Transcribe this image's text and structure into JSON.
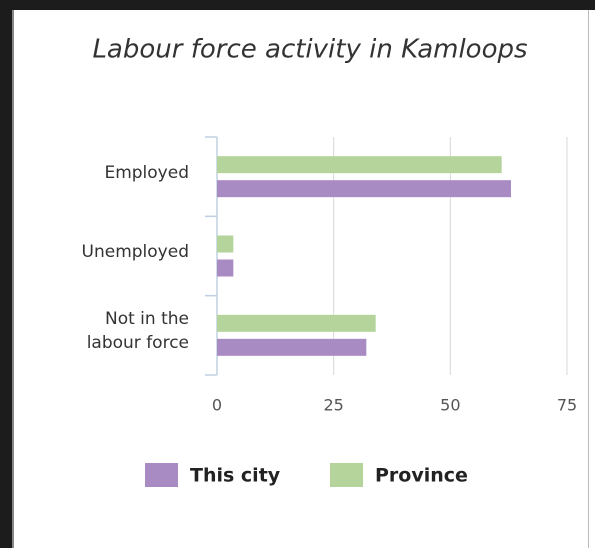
{
  "chart_data": {
    "type": "bar",
    "orientation": "horizontal",
    "title": "Labour force activity in Kamloops",
    "categories": [
      "Employed",
      "Unemployed",
      "Not in the labour force"
    ],
    "series": [
      {
        "name": "This city",
        "color": "#a98bc4",
        "values": [
          63,
          3.5,
          32
        ]
      },
      {
        "name": "Province",
        "color": "#b4d49b",
        "values": [
          61,
          3.5,
          34
        ]
      }
    ],
    "xlim": [
      0,
      75
    ],
    "xticks": [
      0,
      25,
      50,
      75
    ],
    "grid": true,
    "legend": "bottom"
  }
}
